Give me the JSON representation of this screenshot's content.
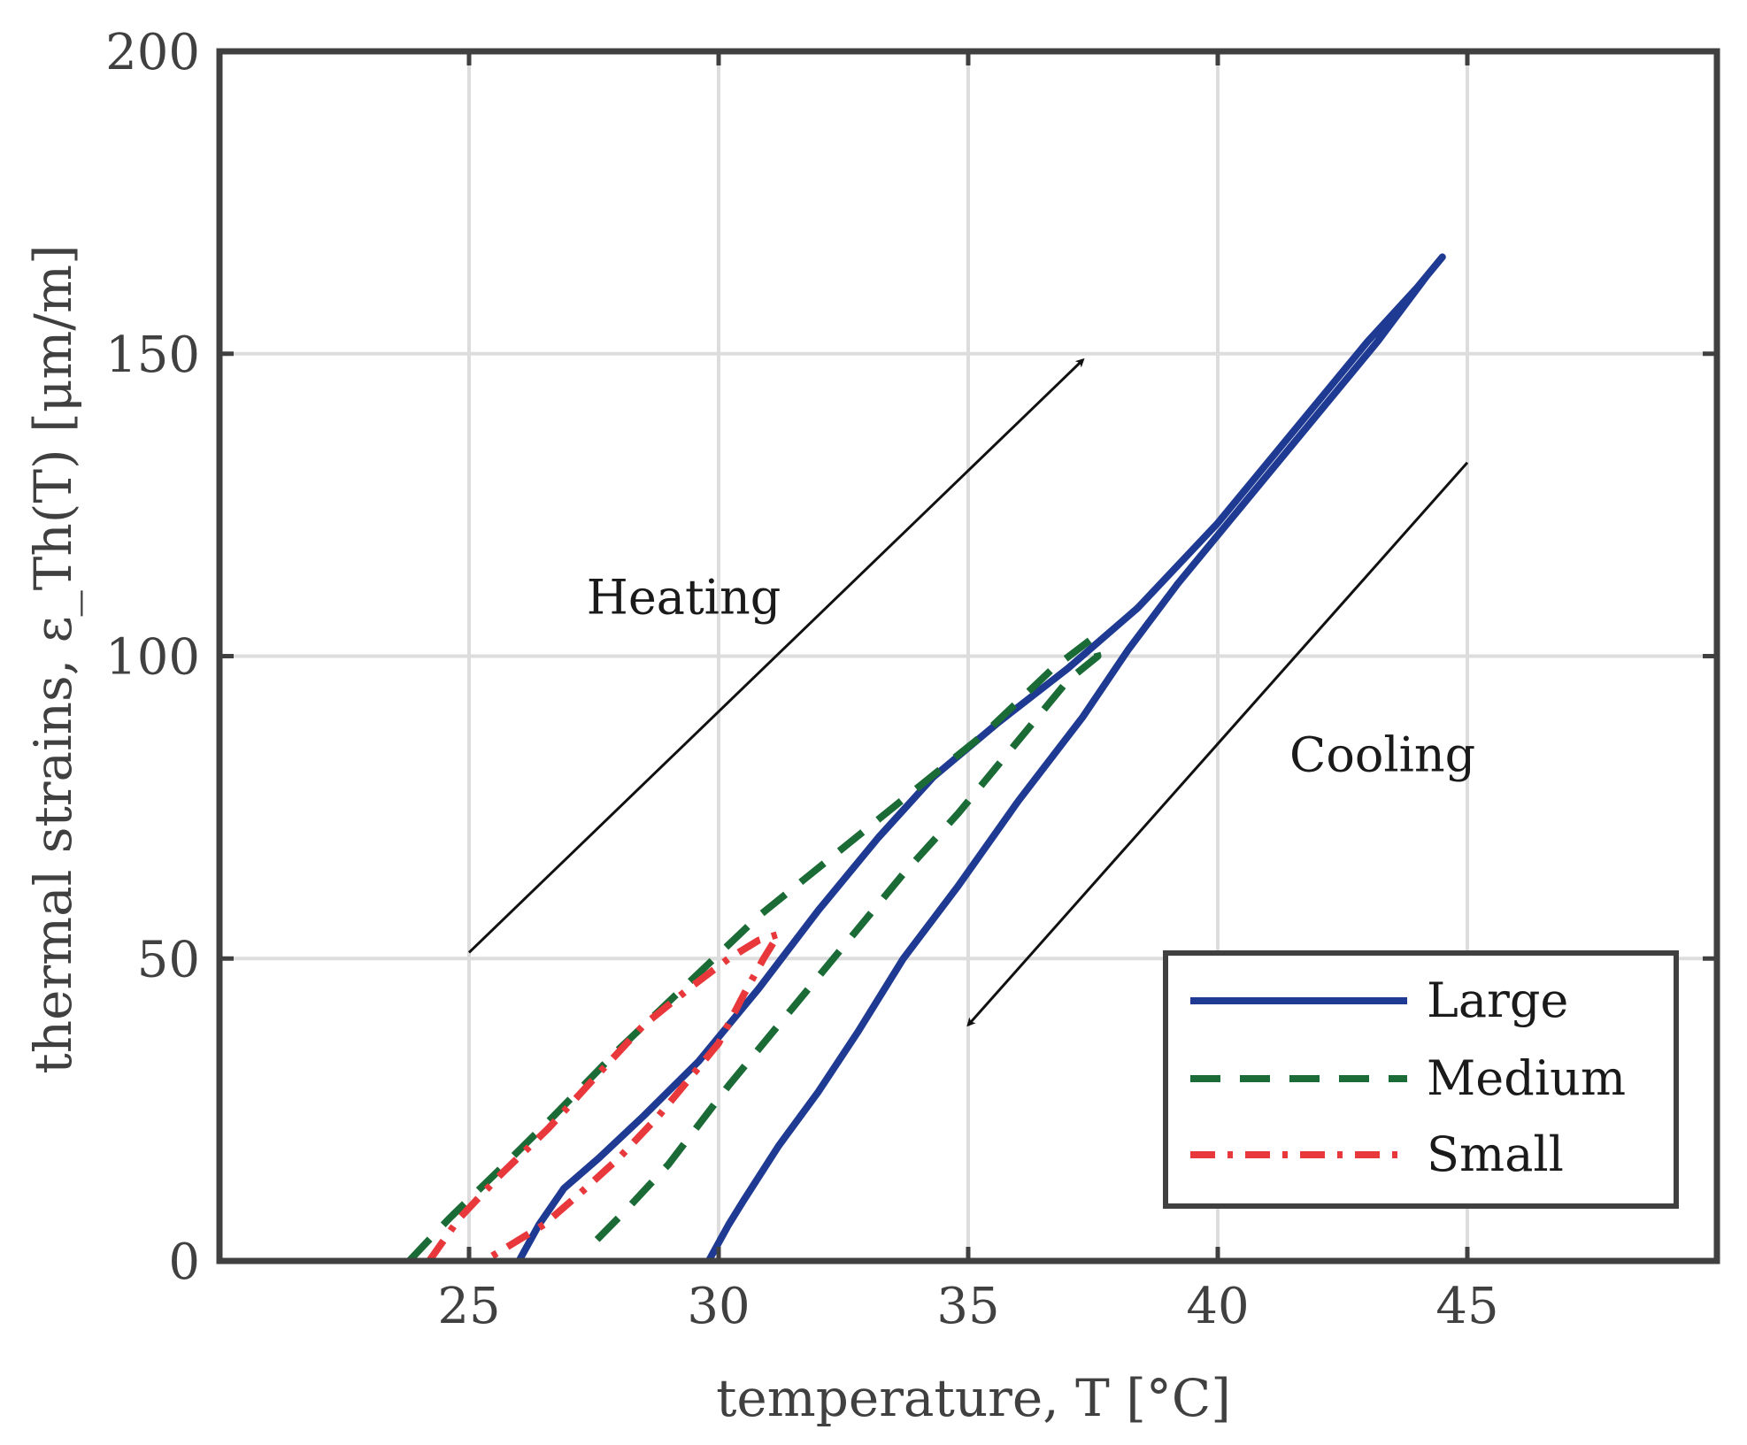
{
  "chart_data": {
    "type": "line",
    "title": "",
    "xlabel": "temperature, T [°C]",
    "ylabel": "thermal strains, ε_Th(T) [μm/m]",
    "xlim": [
      20,
      50
    ],
    "ylim": [
      0,
      200
    ],
    "xticks": [
      25,
      30,
      35,
      40,
      45
    ],
    "yticks": [
      0,
      50,
      100,
      150,
      200
    ],
    "xtick_labels": [
      "25",
      "30",
      "35",
      "40",
      "45"
    ],
    "ytick_labels": [
      "0",
      "50",
      "100",
      "150",
      "200"
    ],
    "grid": true,
    "legend_position": "bottom-right",
    "colors": {
      "Large": "#1f3a93",
      "Medium": "#1a6b35",
      "Small": "#e8383b",
      "axis": "#404040",
      "grid": "#dddddd",
      "annotation": "#111111"
    },
    "annotations": [
      {
        "text": "Heating",
        "x": 29.3,
        "y": 107
      },
      {
        "text": "Cooling",
        "x": 43.3,
        "y": 81
      }
    ],
    "arrows": [
      {
        "name": "heating-arrow",
        "from": [
          25.0,
          51
        ],
        "to": [
          37.3,
          149
        ]
      },
      {
        "name": "cooling-arrow",
        "from": [
          45.0,
          132
        ],
        "to": [
          35.0,
          39
        ]
      }
    ],
    "series": [
      {
        "name": "Large",
        "style": "solid",
        "x": [
          26.0,
          26.4,
          26.9,
          27.6,
          28.5,
          29.6,
          30.8,
          32.0,
          33.2,
          34.3,
          35.6,
          37.0,
          38.4,
          40.0,
          41.6,
          43.0,
          44.0,
          44.5,
          44.2,
          43.2,
          42.0,
          40.6,
          39.2,
          38.2,
          37.3,
          36.0,
          34.8,
          33.7,
          32.8,
          32.0,
          31.2,
          30.5,
          30.2,
          30.0,
          29.8
        ],
        "y": [
          0,
          6,
          12,
          17,
          24,
          33,
          45,
          58,
          70,
          80,
          89,
          98,
          108,
          122,
          138,
          152,
          161,
          166,
          163,
          152,
          140,
          126,
          112,
          101,
          90,
          76,
          62,
          50,
          38,
          28,
          19,
          10,
          6,
          3,
          0
        ]
      },
      {
        "name": "Medium",
        "style": "dashed",
        "x": [
          23.8,
          24.6,
          25.6,
          26.7,
          28.0,
          29.4,
          30.8,
          32.3,
          33.8,
          35.3,
          36.7,
          37.5,
          37.6,
          37.0,
          36.0,
          34.8,
          33.7,
          32.7,
          31.5,
          30.2,
          29.0,
          28.1,
          27.5
        ],
        "y": [
          0,
          7,
          15,
          24,
          35,
          46,
          57,
          67,
          77,
          87,
          98,
          103,
          100,
          96,
          86,
          74,
          64,
          54,
          42,
          29,
          16,
          8,
          3
        ]
      },
      {
        "name": "Small",
        "style": "dashdot",
        "x": [
          24.2,
          24.8,
          25.6,
          26.6,
          27.6,
          28.5,
          29.4,
          30.2,
          30.8,
          31.2,
          30.9,
          30.5,
          30.0,
          29.4,
          28.8,
          28.0,
          27.2,
          26.5,
          25.9,
          25.5,
          25.3
        ],
        "y": [
          0,
          7,
          14,
          22,
          31,
          39,
          45,
          50,
          53,
          54,
          50,
          44,
          36,
          30,
          24,
          17,
          11,
          6,
          3,
          1,
          0
        ]
      }
    ]
  }
}
